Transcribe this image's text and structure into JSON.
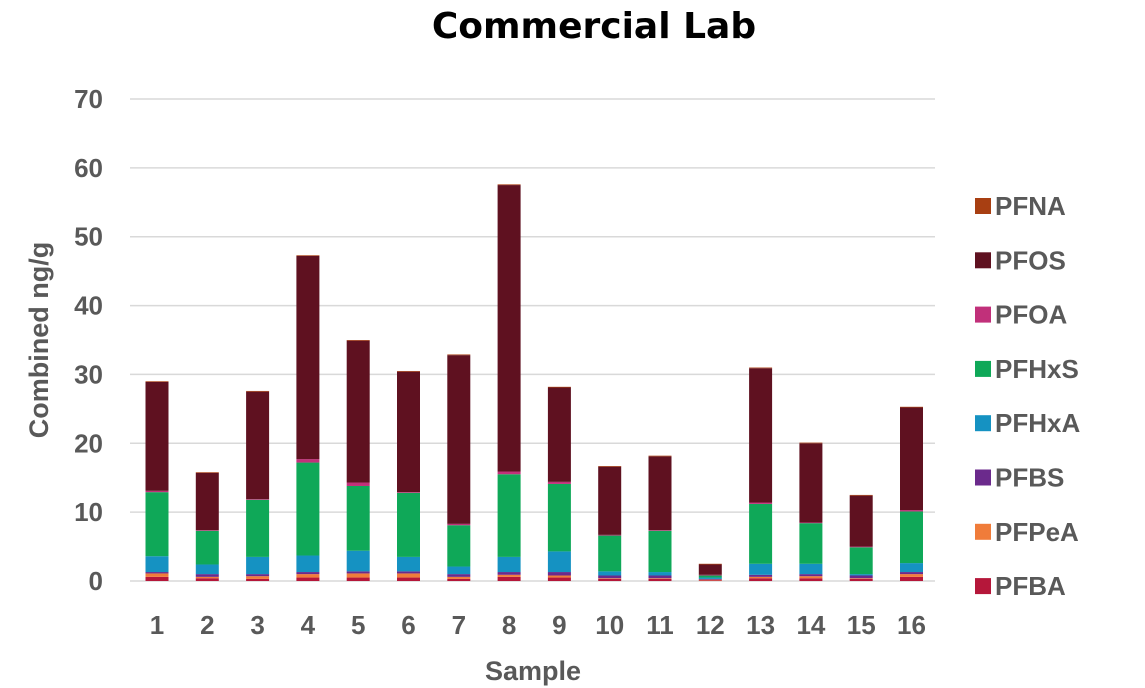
{
  "chart_data": {
    "type": "bar",
    "stacked": true,
    "title": "Commercial Lab",
    "xlabel": "Sample",
    "ylabel": "Combined ng/g",
    "ylim": [
      0,
      70
    ],
    "yticks": [
      0,
      10,
      20,
      30,
      40,
      50,
      60,
      70
    ],
    "grid": true,
    "legend_position": "right",
    "categories": [
      "1",
      "2",
      "3",
      "4",
      "5",
      "6",
      "7",
      "8",
      "9",
      "10",
      "11",
      "12",
      "13",
      "14",
      "15",
      "16"
    ],
    "series": [
      {
        "name": "PFBA",
        "color": "#b5173a",
        "values": [
          0.6,
          0.4,
          0.3,
          0.5,
          0.5,
          0.5,
          0.3,
          0.6,
          0.5,
          0.3,
          0.3,
          0.1,
          0.4,
          0.4,
          0.3,
          0.6
        ]
      },
      {
        "name": "PFPeA",
        "color": "#f07c3a",
        "values": [
          0.5,
          0.2,
          0.4,
          0.5,
          0.6,
          0.6,
          0.3,
          0.3,
          0.3,
          0.1,
          0.1,
          0.1,
          0.2,
          0.3,
          0.1,
          0.4
        ]
      },
      {
        "name": "PFBS",
        "color": "#6b2a8c",
        "values": [
          0.2,
          0.4,
          0.3,
          0.3,
          0.3,
          0.3,
          0.4,
          0.4,
          0.5,
          0.4,
          0.4,
          0.1,
          0.3,
          0.3,
          0.4,
          0.3
        ]
      },
      {
        "name": "PFHxA",
        "color": "#1592c2",
        "values": [
          2.3,
          1.4,
          2.5,
          2.4,
          3.0,
          2.1,
          1.1,
          2.2,
          3.0,
          0.6,
          0.5,
          0.2,
          1.6,
          1.5,
          0.2,
          1.3
        ]
      },
      {
        "name": "PFHxS",
        "color": "#0fa858",
        "values": [
          9.3,
          4.9,
          8.3,
          13.5,
          9.4,
          9.3,
          6.0,
          12.0,
          9.8,
          5.2,
          6.0,
          0.3,
          8.7,
          5.9,
          3.9,
          7.5
        ]
      },
      {
        "name": "PFOA",
        "color": "#c1307a",
        "values": [
          0.2,
          0.1,
          0.1,
          0.5,
          0.5,
          0.1,
          0.2,
          0.4,
          0.3,
          0.1,
          0.1,
          0.1,
          0.2,
          0.1,
          0.1,
          0.2
        ]
      },
      {
        "name": "PFOS",
        "color": "#5f1120",
        "values": [
          15.8,
          8.3,
          15.6,
          29.5,
          20.6,
          17.5,
          24.5,
          41.6,
          13.7,
          9.9,
          10.7,
          1.5,
          19.5,
          11.5,
          7.4,
          14.9
        ]
      },
      {
        "name": "PFNA",
        "color": "#a83f12",
        "values": [
          0.1,
          0.1,
          0.1,
          0.1,
          0.1,
          0.1,
          0.1,
          0.1,
          0.1,
          0.1,
          0.1,
          0.1,
          0.1,
          0.1,
          0.1,
          0.1
        ]
      }
    ],
    "legend_order": [
      "PFNA",
      "PFOS",
      "PFOA",
      "PFHxS",
      "PFHxA",
      "PFBS",
      "PFPeA",
      "PFBA"
    ]
  }
}
